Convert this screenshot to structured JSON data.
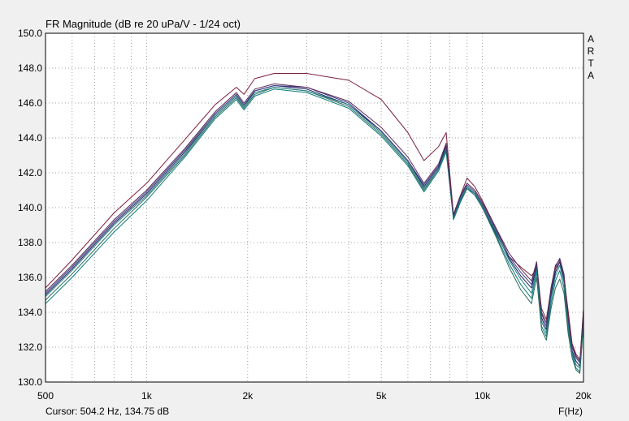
{
  "chart_data": {
    "type": "line",
    "title": "FR Magnitude (dB re 20 uPa/V - 1/24 oct)",
    "brand": "ARTA",
    "xlabel": "F(Hz)",
    "ylabel": "",
    "xscale": "log",
    "xlim": [
      500,
      20000
    ],
    "ylim": [
      130,
      150
    ],
    "grid": true,
    "x_tick_values": [
      500,
      1000,
      2000,
      5000,
      10000,
      20000
    ],
    "x_tick_labels": [
      "500",
      "1k",
      "2k",
      "5k",
      "10k",
      "20k"
    ],
    "y_tick_values": [
      130,
      132,
      134,
      136,
      138,
      140,
      142,
      144,
      146,
      148,
      150
    ],
    "y_tick_labels": [
      "130.0",
      "132.0",
      "134.0",
      "136.0",
      "138.0",
      "140.0",
      "142.0",
      "144.0",
      "146.0",
      "148.0",
      "150.0"
    ],
    "cursor_text": "Cursor: 504.2 Hz, 134.75 dB",
    "x": [
      500,
      600,
      800,
      1000,
      1300,
      1600,
      1850,
      1950,
      2100,
      2400,
      3000,
      4000,
      5000,
      6000,
      6700,
      7400,
      7800,
      8200,
      8600,
      9000,
      9500,
      10000,
      11000,
      12000,
      13000,
      14000,
      14500,
      15000,
      15500,
      16000,
      16500,
      17000,
      17500,
      18000,
      18500,
      19000,
      19500,
      20000
    ],
    "series": [
      {
        "color": "#7a1f3d",
        "values": [
          135.4,
          137.0,
          139.7,
          141.4,
          143.9,
          145.9,
          146.9,
          146.5,
          147.4,
          147.7,
          147.7,
          147.3,
          146.2,
          144.3,
          142.7,
          143.5,
          144.3,
          139.6,
          140.7,
          141.7,
          141.2,
          140.4,
          138.8,
          137.2,
          136.6,
          136.1,
          136.5,
          134.2,
          133.6,
          135.3,
          136.5,
          136.9,
          136.0,
          134.1,
          132.2,
          131.6,
          131.3,
          133.2
        ]
      },
      {
        "color": "#1a1a60",
        "values": [
          135.0,
          136.5,
          139.1,
          140.8,
          143.2,
          145.3,
          146.4,
          145.8,
          146.7,
          147.0,
          146.8,
          145.9,
          144.4,
          142.7,
          141.2,
          142.3,
          143.5,
          139.5,
          140.5,
          141.2,
          140.8,
          140.1,
          138.5,
          137.1,
          136.1,
          135.4,
          136.6,
          133.7,
          133.0,
          135.0,
          136.3,
          136.9,
          135.9,
          133.5,
          131.8,
          131.2,
          130.9,
          133.9
        ]
      },
      {
        "color": "#0a7a7a",
        "values": [
          134.5,
          136.0,
          138.6,
          140.4,
          142.9,
          145.1,
          146.2,
          145.6,
          146.4,
          146.8,
          146.6,
          145.7,
          144.1,
          142.4,
          140.9,
          142.1,
          143.2,
          139.3,
          140.3,
          141.1,
          140.7,
          140.0,
          138.4,
          136.8,
          135.6,
          134.8,
          136.3,
          133.2,
          132.6,
          134.5,
          135.8,
          136.4,
          135.4,
          133.0,
          131.6,
          130.8,
          130.6,
          133.5
        ]
      },
      {
        "color": "#2a6a5a",
        "values": [
          134.7,
          136.2,
          138.8,
          140.6,
          143.0,
          145.2,
          146.3,
          145.7,
          146.5,
          146.9,
          146.7,
          145.8,
          144.2,
          142.5,
          141.0,
          142.2,
          143.3,
          139.4,
          140.4,
          141.1,
          140.8,
          140.0,
          138.3,
          136.6,
          135.3,
          134.5,
          136.0,
          133.0,
          132.4,
          134.2,
          135.4,
          135.9,
          135.1,
          132.8,
          131.4,
          130.7,
          130.5,
          133.3
        ]
      },
      {
        "color": "#228080",
        "values": [
          134.9,
          136.4,
          139.0,
          140.7,
          143.1,
          145.3,
          146.4,
          145.8,
          146.6,
          146.9,
          146.7,
          145.9,
          144.3,
          142.6,
          141.1,
          142.2,
          143.4,
          139.4,
          140.5,
          141.2,
          140.8,
          140.1,
          138.6,
          137.0,
          135.9,
          135.1,
          136.5,
          133.5,
          132.8,
          134.8,
          136.1,
          136.7,
          135.7,
          133.3,
          131.7,
          131.0,
          130.8,
          133.7
        ]
      },
      {
        "color": "#3a3a8a",
        "values": [
          135.1,
          136.6,
          139.2,
          140.9,
          143.3,
          145.4,
          146.5,
          145.9,
          146.7,
          147.0,
          146.9,
          146.0,
          144.4,
          142.7,
          141.3,
          142.4,
          143.6,
          139.5,
          140.6,
          141.3,
          140.9,
          140.2,
          138.7,
          137.2,
          136.3,
          135.6,
          136.8,
          133.9,
          133.2,
          135.2,
          136.6,
          137.1,
          136.2,
          133.7,
          132.0,
          131.4,
          131.1,
          134.1
        ]
      },
      {
        "color": "#5a2a50",
        "values": [
          135.2,
          136.7,
          139.3,
          141.0,
          143.4,
          145.5,
          146.6,
          146.0,
          146.8,
          147.1,
          146.9,
          146.1,
          144.6,
          142.9,
          141.4,
          142.5,
          143.7,
          139.6,
          140.7,
          141.4,
          141.0,
          140.3,
          138.8,
          137.4,
          136.5,
          135.8,
          136.9,
          134.0,
          133.4,
          135.4,
          136.7,
          137.0,
          136.0,
          133.8,
          132.1,
          131.5,
          131.2,
          134.2
        ]
      }
    ]
  }
}
